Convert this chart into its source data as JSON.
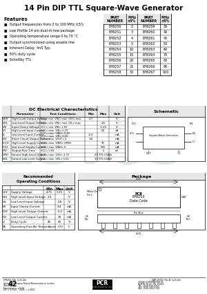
{
  "title": "14 Pin DIP TTL Square-Wave Generator",
  "features_title": "Features",
  "features": [
    "Output frequencies from 2 to 100 MHz ±5%",
    "Low Profile 14 pin dual-in-line package",
    "Operating temperature range 0 to 70 °C",
    "Output synchronized using enable line",
    "Inherent Delay  4nS Typ.",
    "50% duty cycle",
    "Schottky TTL"
  ],
  "part_table_headers": [
    "PART\nNUMBER",
    "MHz\n±5%",
    "PART\nNUMBER",
    "MHz\n±5%"
  ],
  "part_table_data": [
    [
      "EP8250",
      "2",
      "EP8259",
      "35"
    ],
    [
      "EP8251",
      "3",
      "EP8260",
      "40"
    ],
    [
      "EP8252",
      "4",
      "EP8261",
      "45"
    ],
    [
      "EP8253",
      "5",
      "EP8262",
      "50"
    ],
    [
      "EP8254",
      "10",
      "EP8263",
      "60"
    ],
    [
      "EP8255",
      "15",
      "EP8264",
      "70"
    ],
    [
      "EP8256",
      "20",
      "EP8265",
      "80"
    ],
    [
      "EP8257",
      "25",
      "EP8266",
      "90"
    ],
    [
      "EP8258",
      "30",
      "EP8267",
      "100"
    ]
  ],
  "dc_table_title": "DC Electrical Characteristics",
  "dc_param_hdr": "Parameter",
  "dc_cond_hdr": "Test Conditions",
  "dc_min_hdr": "Min",
  "dc_max_hdr": "Max",
  "dc_unit_hdr": "Unit",
  "dc_rows": [
    [
      "VOH",
      "High Level Output Voltage",
      "VCC= min  VIN= max  IOH= max",
      "2.7",
      "",
      "V"
    ],
    [
      "VOL",
      "Low Level Output Voltage",
      "VCC= min  VIN= max  IOL= max",
      "",
      ".45",
      "V"
    ],
    [
      "VIK",
      "Input Clamp Voltage",
      "VCC= min  VIN= 1.5V",
      "",
      "-1.2V",
      "V"
    ],
    [
      "IIH",
      "High Level Input Current",
      "VCC= max  VIN= 2.7V",
      "",
      "20",
      "uA"
    ],
    [
      "IIL",
      "Low Level Input Current",
      "VCC= max  VINH= 5.4V\nVCC= max  VIN= 0.5V",
      "-1.6",
      "",
      "mA"
    ],
    [
      "IOS",
      "Short Circuit Output Current",
      "VCC= max  VOUT= 0",
      "-40",
      "",
      "mA"
    ],
    [
      "ICCH",
      "High Level Supply Current",
      "VCC= max  VINH= OPEN",
      "",
      "75",
      "mA"
    ],
    [
      "ICCL",
      "Low Level Supply Current",
      "VCC= max  VINH= 0",
      "",
      "105",
      "mA"
    ],
    [
      "tPD",
      "Output Rise Time",
      "VCC= 5.0V",
      "",
      "5",
      "nS"
    ],
    [
      "NOH",
      "Fanout High Level Output",
      "VCC= max  VOH= 2.7V",
      "",
      "20 TTL LOAD",
      ""
    ],
    [
      "NOL",
      "Fanout Low Level Output",
      "VCC= max  VOL= 0.5V",
      "",
      "10 TTL LOAD",
      ""
    ]
  ],
  "schematic_title": "Schematic",
  "rec_title": "Recommended\nOperating Conditions",
  "rec_rows": [
    [
      "VCC",
      "Supply Voltage",
      "4.75",
      "5.25",
      "V"
    ],
    [
      "VIH",
      "High Level Input Voltage",
      "2.0",
      "",
      "V"
    ],
    [
      "VIL",
      "Low Level Input Voltage",
      "",
      "0.8",
      "V"
    ],
    [
      "IIK",
      "Input Clamp Current",
      "",
      "-14",
      "mA"
    ],
    [
      "IOH",
      "High Level Output Current",
      "",
      "-3.0",
      "mA"
    ],
    [
      "IOL",
      "Low Level Output Current",
      "",
      "20",
      "mA"
    ],
    [
      "d",
      "Duty Cycle",
      "40",
      "60",
      "%"
    ],
    [
      "TA",
      "Operating Free-Air Temperature",
      "0",
      "+70",
      "°C"
    ]
  ],
  "page_num": "42",
  "bg_color": "#ffffff",
  "text_color": "#000000",
  "watermark_letters": [
    "L",
    "O",
    "T",
    "U",
    "S"
  ],
  "watermark_color": "#c5d5e5",
  "hdr_bg": "#e8e8e8"
}
